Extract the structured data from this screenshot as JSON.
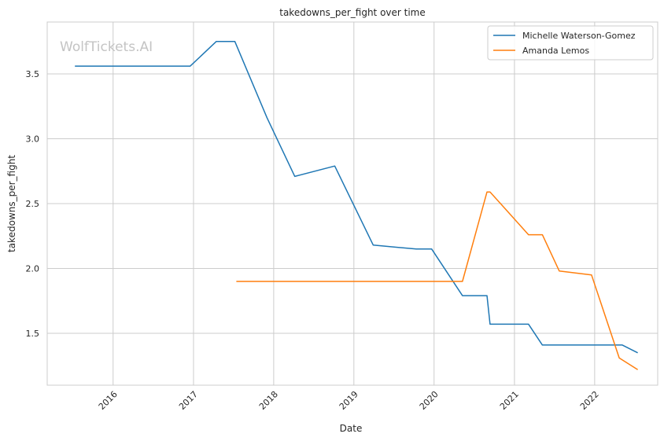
{
  "chart_data": {
    "type": "line",
    "title": "takedowns_per_fight over time",
    "xlabel": "Date",
    "ylabel": "takedowns_per_fight",
    "watermark": "WolfTickets.AI",
    "x_ticks": [
      "2016",
      "2017",
      "2018",
      "2019",
      "2020",
      "2021",
      "2022"
    ],
    "y_ticks": [
      "1.5",
      "2.0",
      "2.5",
      "3.0",
      "3.5"
    ],
    "xlim": [
      "2015-03-07",
      "2022-10-15"
    ],
    "ylim": [
      1.1,
      3.9
    ],
    "grid": true,
    "legend_position": "top-right",
    "series": [
      {
        "name": "Michelle Waterson-Gomez",
        "color": "#1f77b4",
        "points": [
          [
            "2015-07-11",
            3.56
          ],
          [
            "2016-12-17",
            3.56
          ],
          [
            "2017-04-15",
            3.75
          ],
          [
            "2017-07-08",
            3.75
          ],
          [
            "2017-12-02",
            3.16
          ],
          [
            "2018-04-07",
            2.71
          ],
          [
            "2018-10-06",
            2.79
          ],
          [
            "2019-03-30",
            2.18
          ],
          [
            "2019-10-12",
            2.15
          ],
          [
            "2019-12-21",
            2.15
          ],
          [
            "2020-05-09",
            1.79
          ],
          [
            "2020-08-29",
            1.79
          ],
          [
            "2020-09-12",
            1.57
          ],
          [
            "2021-03-06",
            1.57
          ],
          [
            "2021-05-08",
            1.41
          ],
          [
            "2022-05-07",
            1.41
          ],
          [
            "2022-07-16",
            1.35
          ]
        ]
      },
      {
        "name": "Amanda Lemos",
        "color": "#ff7f0e",
        "points": [
          [
            "2017-07-15",
            1.9
          ],
          [
            "2020-05-09",
            1.9
          ],
          [
            "2020-08-29",
            2.59
          ],
          [
            "2020-09-12",
            2.59
          ],
          [
            "2021-03-06",
            2.26
          ],
          [
            "2021-05-08",
            2.26
          ],
          [
            "2021-07-24",
            1.98
          ],
          [
            "2021-12-18",
            1.95
          ],
          [
            "2022-04-23",
            1.31
          ],
          [
            "2022-07-16",
            1.22
          ]
        ]
      }
    ]
  }
}
